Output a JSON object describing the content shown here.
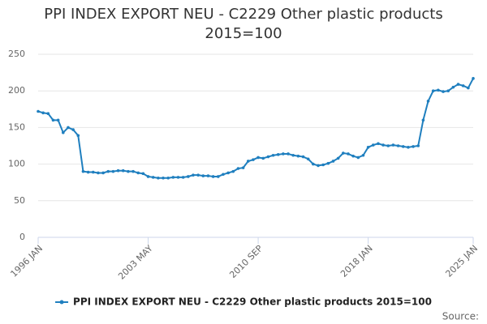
{
  "chart_data": {
    "type": "line",
    "title": "PPI INDEX EXPORT NEU - C2229 Other plastic products 2015=100",
    "source": "Source:",
    "categories": [
      "1996 JAN",
      null,
      null,
      null,
      null,
      null,
      null,
      null,
      null,
      null,
      null,
      null,
      null,
      null,
      null,
      null,
      null,
      null,
      null,
      null,
      null,
      null,
      "2003 MAY",
      null,
      null,
      null,
      null,
      null,
      null,
      null,
      null,
      null,
      null,
      null,
      null,
      null,
      null,
      null,
      null,
      null,
      null,
      null,
      null,
      null,
      "2010 SEP",
      null,
      null,
      null,
      null,
      null,
      null,
      null,
      null,
      null,
      null,
      null,
      null,
      null,
      null,
      null,
      null,
      null,
      null,
      null,
      null,
      null,
      "2018 JAN",
      null,
      null,
      null,
      null,
      null,
      null,
      null,
      null,
      null,
      null,
      null,
      null,
      null,
      null,
      null,
      null,
      null,
      null,
      null,
      null,
      "2025 JAN"
    ],
    "series": [
      {
        "name": "PPI INDEX EXPORT NEU - C2229 Other plastic products 2015=100",
        "color": "#1f7fbf",
        "values": [
          172,
          170,
          169,
          160,
          160,
          143,
          150,
          147,
          139,
          90,
          89,
          89,
          88,
          88,
          90,
          90,
          91,
          91,
          90,
          90,
          88,
          87,
          83,
          82,
          81,
          81,
          81,
          82,
          82,
          82,
          83,
          85,
          85,
          84,
          84,
          83,
          83,
          86,
          88,
          90,
          94,
          95,
          104,
          106,
          109,
          108,
          110,
          112,
          113,
          114,
          114,
          112,
          111,
          110,
          107,
          100,
          98,
          99,
          101,
          104,
          108,
          115,
          114,
          111,
          109,
          112,
          123,
          126,
          128,
          126,
          125,
          126,
          125,
          124,
          123,
          124,
          125,
          160,
          186,
          200,
          201,
          199,
          200,
          205,
          209,
          207,
          204,
          217
        ]
      }
    ],
    "ylim": [
      0,
      250
    ],
    "yticks": [
      0,
      50,
      100,
      150,
      200,
      250
    ],
    "grid": true,
    "legend": "bottom"
  }
}
